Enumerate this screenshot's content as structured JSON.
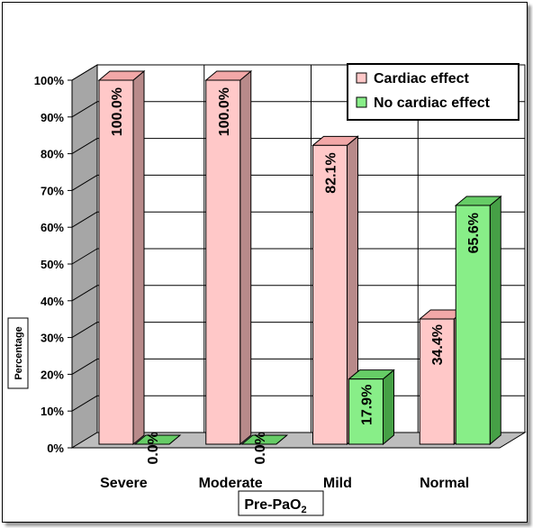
{
  "chart_data": {
    "type": "bar",
    "title": "",
    "xlabel": "Pre-PaO",
    "xlabel_subscript": "2",
    "ylabel": "Percentage",
    "ylim": [
      0,
      100
    ],
    "yticks": [
      "0%",
      "10%",
      "20%",
      "30%",
      "40%",
      "50%",
      "60%",
      "70%",
      "80%",
      "90%",
      "100%"
    ],
    "categories": [
      "Severe",
      "Moderate",
      "Mild",
      "Normal"
    ],
    "grid": true,
    "legend_position": "top-right",
    "series": [
      {
        "name": "Cardiac effect",
        "color": "#ffc8c8",
        "side_color": "#b88a8a",
        "top_color": "#f2a8a8",
        "values": [
          100.0,
          100.0,
          82.1,
          34.4
        ],
        "labels": [
          "100.0%",
          "100.0%",
          "82.1%",
          "34.4%"
        ]
      },
      {
        "name": "No cardiac effect",
        "color": "#88ee88",
        "side_color": "#46a046",
        "top_color": "#66cc66",
        "values": [
          0.0,
          0.0,
          17.9,
          65.6
        ],
        "labels": [
          "0.0%",
          "0.0%",
          "17.9%",
          "65.6%"
        ]
      }
    ]
  }
}
